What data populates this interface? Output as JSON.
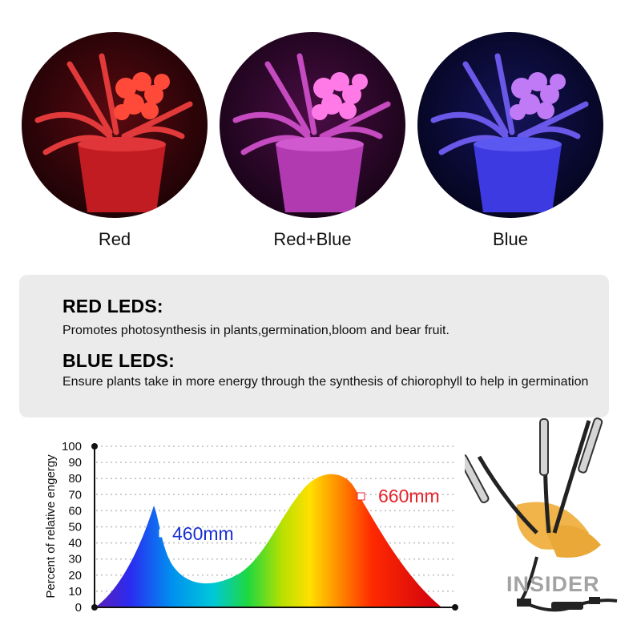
{
  "gallery": [
    {
      "caption": "Red"
    },
    {
      "caption": "Red+Blue"
    },
    {
      "caption": "Blue"
    }
  ],
  "info": {
    "red_title": "RED LEDS:",
    "red_text": "Promotes photosynthesis in plants,germination,bloom and bear fruit.",
    "blue_title": "BLUE LEDS:",
    "blue_text": "Ensure plants take in more energy through the synthesis of chiorophyll to help in germination"
  },
  "chart_data": {
    "type": "area",
    "ylabel": "Percent of relative engergy",
    "yticks": [
      0,
      10,
      20,
      30,
      40,
      50,
      60,
      70,
      80,
      90,
      100
    ],
    "ylim": [
      0,
      100
    ],
    "grid": true,
    "annotations": [
      {
        "label": "460mm",
        "value": 46
      },
      {
        "label": "660mm",
        "value": 68
      }
    ]
  },
  "watermark": {
    "brand": "INSIDER"
  },
  "colors": {
    "red": "#e8232b",
    "blue": "#1a2fd0",
    "box": "#ebebeb"
  }
}
